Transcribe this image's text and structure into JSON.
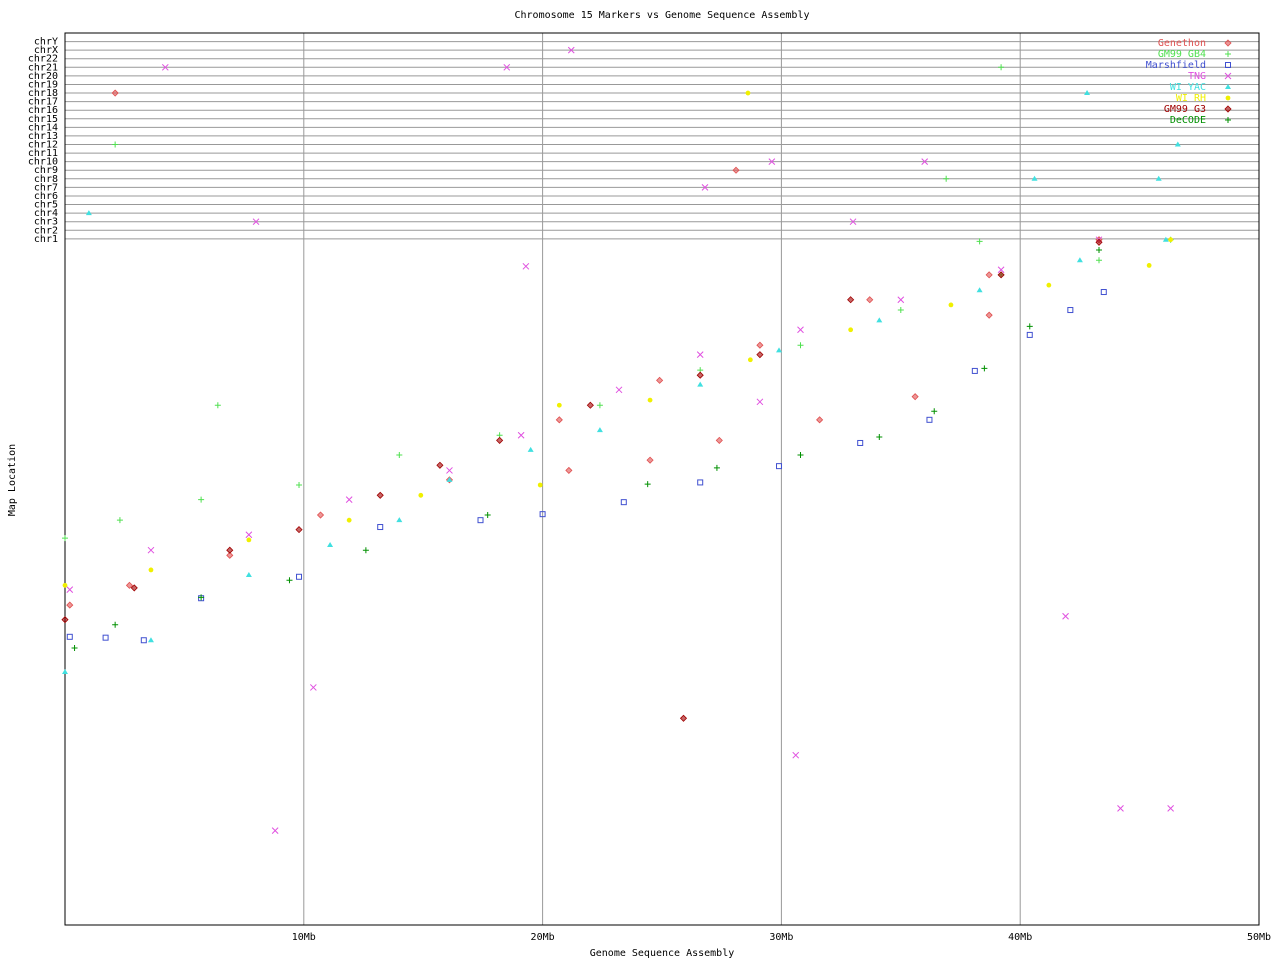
{
  "chart_data": {
    "type": "scatter",
    "title": "Chromosome 15 Markers vs Genome Sequence Assembly",
    "x_label": "Genome Sequence Assembly",
    "y_label": "Map Location",
    "xlim": [
      0,
      50
    ],
    "xticks": [
      {
        "value": 10,
        "label": "10Mb"
      },
      {
        "value": 20,
        "label": "20Mb"
      },
      {
        "value": 30,
        "label": "30Mb"
      },
      {
        "value": 40,
        "label": "40Mb"
      },
      {
        "value": 50,
        "label": "50Mb"
      }
    ],
    "ylim": [
      0,
      104
    ],
    "yticks": [
      {
        "value": 80,
        "label": "chr1"
      },
      {
        "value": 81,
        "label": "chr2"
      },
      {
        "value": 82,
        "label": "chr3"
      },
      {
        "value": 83,
        "label": "chr4"
      },
      {
        "value": 84,
        "label": "chr5"
      },
      {
        "value": 85,
        "label": "chr6"
      },
      {
        "value": 86,
        "label": "chr7"
      },
      {
        "value": 87,
        "label": "chr8"
      },
      {
        "value": 88,
        "label": "chr9"
      },
      {
        "value": 89,
        "label": "chr10"
      },
      {
        "value": 90,
        "label": "chr11"
      },
      {
        "value": 91,
        "label": "chr12"
      },
      {
        "value": 92,
        "label": "chr13"
      },
      {
        "value": 93,
        "label": "chr14"
      },
      {
        "value": 94,
        "label": "chr15"
      },
      {
        "value": 95,
        "label": "chr16"
      },
      {
        "value": 96,
        "label": "chr17"
      },
      {
        "value": 97,
        "label": "chr18"
      },
      {
        "value": 98,
        "label": "chr19"
      },
      {
        "value": 99,
        "label": "chr20"
      },
      {
        "value": 100,
        "label": "chr21"
      },
      {
        "value": 101,
        "label": "chr22"
      },
      {
        "value": 102,
        "label": "chrX"
      },
      {
        "value": 103,
        "label": "chrY"
      }
    ],
    "grid": true,
    "legend": "upper right",
    "series": [
      {
        "name": "Genethon",
        "color": "#e05050",
        "marker": "diamond",
        "x": [
          0.2,
          2.7,
          6.9,
          10.7,
          16.1,
          20.7,
          24.9,
          29.1,
          33.7,
          38.7,
          43.3,
          21.1,
          24.5,
          27.4,
          31.6,
          35.6,
          38.7,
          2.1,
          28.1
        ],
        "values": [
          37.3,
          39.6,
          43.1,
          47.8,
          51.9,
          58.9,
          63.5,
          67.6,
          72.9,
          75.8,
          79.9,
          53.0,
          54.2,
          56.5,
          58.9,
          61.6,
          71.1,
          97,
          88
        ]
      },
      {
        "name": "GM99 GB4",
        "color": "#50e050",
        "marker": "plus",
        "x": [
          0,
          2.3,
          5.7,
          9.8,
          14.0,
          18.2,
          22.4,
          26.6,
          30.8,
          35.0,
          39.2,
          43.3,
          46.3,
          6.4,
          2.1,
          39.2,
          36.9,
          38.3
        ],
        "values": [
          45.1,
          47.2,
          49.6,
          51.3,
          54.8,
          57.1,
          60.6,
          64.7,
          67.6,
          71.7,
          75.8,
          77.5,
          79.9,
          60.6,
          91,
          100,
          87,
          79.7
        ]
      },
      {
        "name": "Marshfield",
        "color": "#4050d0",
        "marker": "square",
        "x": [
          0.2,
          1.7,
          3.3,
          5.7,
          9.8,
          13.2,
          17.4,
          20.0,
          23.4,
          26.6,
          29.9,
          33.3,
          36.2,
          38.1,
          40.4,
          42.1,
          43.5
        ],
        "values": [
          33.6,
          33.5,
          33.2,
          38.1,
          40.6,
          46.4,
          47.2,
          47.9,
          49.3,
          51.6,
          53.5,
          56.2,
          58.9,
          64.6,
          68.8,
          71.7,
          73.8
        ]
      },
      {
        "name": "TNG",
        "color": "#e050e0",
        "marker": "x",
        "x": [
          0.2,
          3.6,
          7.7,
          11.9,
          16.1,
          19.1,
          23.2,
          26.6,
          30.8,
          35.0,
          39.2,
          43.3,
          19.3,
          10.4,
          8.8,
          30.6,
          41.9,
          44.2,
          46.3,
          29.1,
          4.2,
          18.5,
          21.2,
          8.0,
          29.6,
          36.0,
          33.0,
          26.8
        ],
        "values": [
          39.1,
          43.7,
          45.5,
          49.6,
          53.0,
          57.1,
          62.4,
          66.5,
          69.4,
          72.9,
          76.4,
          79.9,
          76.8,
          27.7,
          11.0,
          19.8,
          36.0,
          13.6,
          13.6,
          61.0,
          100,
          100,
          102,
          82,
          89,
          89,
          82,
          86
        ]
      },
      {
        "name": "WI YAC",
        "color": "#40e0e0",
        "marker": "triangle",
        "x": [
          0,
          3.6,
          7.7,
          11.1,
          14.0,
          16.1,
          19.5,
          22.4,
          26.6,
          29.9,
          34.1,
          38.3,
          42.5,
          46.1,
          1.0,
          42.8,
          40.6,
          45.8,
          46.6
        ],
        "values": [
          29.5,
          33.2,
          40.8,
          44.3,
          47.2,
          51.9,
          55.4,
          57.7,
          63.0,
          67.0,
          70.5,
          74.0,
          77.5,
          79.9,
          83,
          97,
          87,
          87,
          91
        ]
      },
      {
        "name": "WI RH",
        "color": "#f0f000",
        "marker": "circle",
        "x": [
          0,
          3.6,
          7.7,
          11.9,
          14.9,
          19.9,
          20.7,
          24.5,
          28.7,
          32.9,
          37.1,
          41.2,
          45.4,
          46.3,
          28.6
        ],
        "values": [
          39.6,
          41.4,
          44.9,
          47.2,
          50.1,
          51.3,
          60.6,
          61.2,
          65.9,
          69.4,
          72.3,
          74.6,
          76.9,
          79.9,
          97
        ]
      },
      {
        "name": "GM99 G3",
        "color": "#a00000",
        "marker": "diamond",
        "x": [
          0,
          2.9,
          6.9,
          9.8,
          13.2,
          15.7,
          18.2,
          22.0,
          26.6,
          29.1,
          32.9,
          39.2,
          43.3,
          25.9
        ],
        "values": [
          35.6,
          39.3,
          43.7,
          46.1,
          50.1,
          53.6,
          56.5,
          60.6,
          64.1,
          66.5,
          72.9,
          75.8,
          79.6,
          24.1
        ]
      },
      {
        "name": "DeCODE",
        "color": "#009000",
        "marker": "plus",
        "x": [
          0.4,
          2.1,
          5.7,
          9.4,
          12.6,
          17.7,
          24.4,
          27.3,
          30.8,
          34.1,
          36.4,
          38.5,
          40.4,
          43.3
        ],
        "values": [
          32.3,
          35.0,
          38.2,
          40.2,
          43.7,
          47.8,
          51.4,
          53.3,
          54.8,
          56.9,
          59.9,
          64.9,
          69.8,
          78.7
        ]
      }
    ]
  }
}
